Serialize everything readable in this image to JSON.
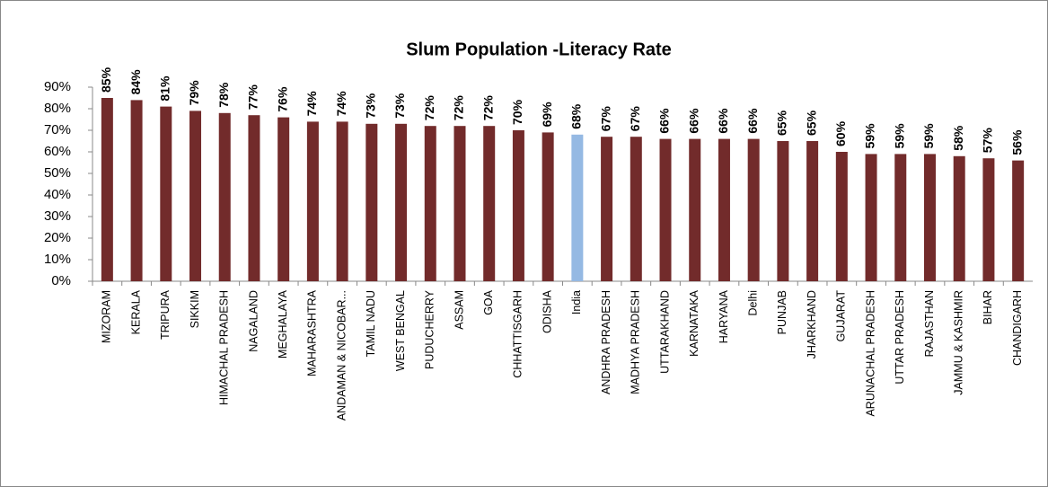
{
  "chart_data": {
    "type": "bar",
    "title": "Slum Population -Literacy Rate",
    "categories": [
      "MIZORAM",
      "KERALA",
      "TRIPURA",
      "SIKKIM",
      "HIMACHAL PRADESH",
      "NAGALAND",
      "MEGHALAYA",
      "MAHARASHTRA",
      "ANDAMAN & NICOBAR...",
      "TAMIL NADU",
      "WEST BENGAL",
      "PUDUCHERRY",
      "ASSAM",
      "GOA",
      "CHHATTISGARH",
      "ODISHA",
      "India",
      "ANDHRA PRADESH",
      "MADHYA PRADESH",
      "UTTARAKHAND",
      "KARNATAKA",
      "HARYANA",
      "Delhi",
      "PUNJAB",
      "JHARKHAND",
      "GUJARAT",
      "ARUNACHAL PRADESH",
      "UTTAR PRADESH",
      "RAJASTHAN",
      "JAMMU & KASHMIR",
      "BIHAR",
      "CHANDIGARH"
    ],
    "values": [
      85,
      84,
      81,
      79,
      78,
      77,
      76,
      74,
      74,
      73,
      73,
      72,
      72,
      72,
      70,
      69,
      68,
      67,
      67,
      66,
      66,
      66,
      66,
      65,
      65,
      60,
      59,
      59,
      59,
      58,
      57,
      56
    ],
    "value_labels": [
      "85%",
      "84%",
      "81%",
      "79%",
      "78%",
      "77%",
      "76%",
      "74%",
      "74%",
      "73%",
      "73%",
      "72%",
      "72%",
      "72%",
      "70%",
      "69%",
      "68%",
      "67%",
      "67%",
      "66%",
      "66%",
      "66%",
      "66%",
      "65%",
      "65%",
      "60%",
      "59%",
      "59%",
      "59%",
      "58%",
      "57%",
      "56%"
    ],
    "colors": [
      "#722b2b",
      "#722b2b",
      "#722b2b",
      "#722b2b",
      "#722b2b",
      "#722b2b",
      "#722b2b",
      "#722b2b",
      "#722b2b",
      "#722b2b",
      "#722b2b",
      "#722b2b",
      "#722b2b",
      "#722b2b",
      "#722b2b",
      "#722b2b",
      "#95b9e3",
      "#722b2b",
      "#722b2b",
      "#722b2b",
      "#722b2b",
      "#722b2b",
      "#722b2b",
      "#722b2b",
      "#722b2b",
      "#722b2b",
      "#722b2b",
      "#722b2b",
      "#722b2b",
      "#722b2b",
      "#722b2b",
      "#722b2b"
    ],
    "ylim": [
      0,
      90
    ],
    "yticks": [
      {
        "value": 0,
        "label": "0%"
      },
      {
        "value": 10,
        "label": "10%"
      },
      {
        "value": 20,
        "label": "20%"
      },
      {
        "value": 30,
        "label": "30%"
      },
      {
        "value": 40,
        "label": "40%"
      },
      {
        "value": 50,
        "label": "50%"
      },
      {
        "value": 60,
        "label": "60%"
      },
      {
        "value": 70,
        "label": "70%"
      },
      {
        "value": 80,
        "label": "80%"
      },
      {
        "value": 90,
        "label": "90%"
      }
    ],
    "grid": false
  }
}
